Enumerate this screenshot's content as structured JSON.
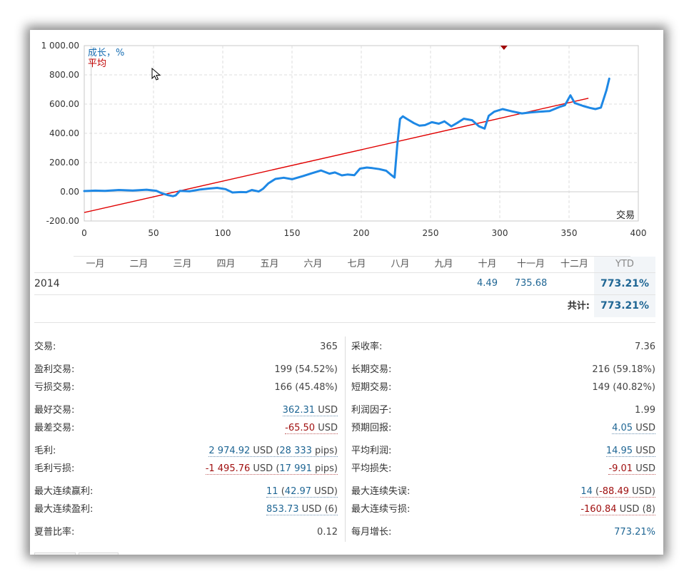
{
  "chart_data": {
    "type": "line",
    "xlabel": "交易",
    "ylabel": "",
    "xlim": [
      0,
      400
    ],
    "ylim": [
      -200,
      1000
    ],
    "x_ticks": [
      "0",
      "50",
      "100",
      "150",
      "200",
      "250",
      "300",
      "350",
      "400"
    ],
    "y_ticks": [
      "-200.00",
      "0.00",
      "200.00",
      "400.00",
      "600.00",
      "800.00",
      "1 000.00"
    ],
    "grid": true,
    "legend_position": "top-left",
    "series": [
      {
        "name": "成长，%",
        "color": "#1e88e5",
        "points": [
          [
            0,
            5
          ],
          [
            8,
            8
          ],
          [
            15,
            6
          ],
          [
            25,
            12
          ],
          [
            35,
            9
          ],
          [
            45,
            14
          ],
          [
            52,
            7
          ],
          [
            56,
            -10
          ],
          [
            60,
            -22
          ],
          [
            64,
            -30
          ],
          [
            66,
            -25
          ],
          [
            69,
            6
          ],
          [
            76,
            3
          ],
          [
            84,
            16
          ],
          [
            90,
            22
          ],
          [
            96,
            27
          ],
          [
            102,
            18
          ],
          [
            107,
            -5
          ],
          [
            113,
            -2
          ],
          [
            117,
            -3
          ],
          [
            121,
            12
          ],
          [
            126,
            2
          ],
          [
            129,
            20
          ],
          [
            133,
            58
          ],
          [
            138,
            88
          ],
          [
            144,
            96
          ],
          [
            150,
            86
          ],
          [
            158,
            108
          ],
          [
            164,
            126
          ],
          [
            171,
            146
          ],
          [
            177,
            124
          ],
          [
            181,
            132
          ],
          [
            186,
            112
          ],
          [
            190,
            118
          ],
          [
            195,
            113
          ],
          [
            199,
            158
          ],
          [
            204,
            166
          ],
          [
            208,
            162
          ],
          [
            213,
            155
          ],
          [
            218,
            144
          ],
          [
            221,
            120
          ],
          [
            224,
            97
          ],
          [
            226,
            318
          ],
          [
            228,
            498
          ],
          [
            230,
            516
          ],
          [
            233,
            498
          ],
          [
            238,
            470
          ],
          [
            242,
            452
          ],
          [
            246,
            456
          ],
          [
            251,
            476
          ],
          [
            256,
            466
          ],
          [
            260,
            482
          ],
          [
            265,
            448
          ],
          [
            269,
            470
          ],
          [
            274,
            500
          ],
          [
            280,
            490
          ],
          [
            285,
            448
          ],
          [
            289,
            432
          ],
          [
            292,
            520
          ],
          [
            296,
            548
          ],
          [
            302,
            566
          ],
          [
            309,
            550
          ],
          [
            316,
            536
          ],
          [
            322,
            543
          ],
          [
            328,
            548
          ],
          [
            336,
            552
          ],
          [
            343,
            580
          ],
          [
            347,
            592
          ],
          [
            351,
            660
          ],
          [
            354,
            608
          ],
          [
            360,
            588
          ],
          [
            365,
            574
          ],
          [
            369,
            566
          ],
          [
            373,
            576
          ],
          [
            377,
            695
          ],
          [
            379,
            774
          ]
        ]
      },
      {
        "name": "平均",
        "color": "#e00000",
        "points": [
          [
            0,
            -142
          ],
          [
            364,
            640
          ]
        ]
      }
    ],
    "annotations": [
      {
        "type": "marker",
        "x": 303,
        "color": "#a00000"
      }
    ]
  },
  "table": {
    "months": [
      "一月",
      "二月",
      "三月",
      "四月",
      "五月",
      "六月",
      "七月",
      "八月",
      "九月",
      "十月",
      "十一月",
      "十二月"
    ],
    "ytd_header": "YTD",
    "rows": [
      {
        "year": "2014",
        "values": [
          "",
          "",
          "",
          "",
          "",
          "",
          "",
          "",
          "",
          "4.49",
          "735.68",
          ""
        ],
        "ytd": "773.21%"
      }
    ],
    "total_label": "共计:",
    "total_value": "773.21%"
  },
  "stats_left": [
    {
      "label": "交易:",
      "value": "365"
    },
    {
      "label": "盈利交易:",
      "value": "199 (54.52%)"
    },
    {
      "label": "亏损交易:",
      "value": "166 (45.48%)"
    },
    {
      "label": "最好交易:",
      "value_num": "362.31",
      "value_unit": " USD"
    },
    {
      "label": "最差交易:",
      "value_num": "-65.50",
      "value_unit": " USD"
    },
    {
      "label": "毛利:",
      "v1": "2 974.92",
      "v2": " USD (",
      "v3": "28 333",
      "v4": " pips)"
    },
    {
      "label": "毛利亏损:",
      "v1": "-1 495.76",
      "v2": " USD (",
      "v3": "17 991",
      "v4": " pips)"
    },
    {
      "label": "最大连续赢利:",
      "v1": "11",
      "v2": " (",
      "v3": "42.97",
      "v4": " USD)"
    },
    {
      "label": "最大连续盈利:",
      "v1": "853.73",
      "v2": " USD (6)"
    },
    {
      "label": "夏普比率:",
      "value": "0.12"
    }
  ],
  "stats_right": [
    {
      "label": "采收率:",
      "value": "7.36"
    },
    {
      "label": "长期交易:",
      "value": "216 (59.18%)"
    },
    {
      "label": "短期交易:",
      "value": "149 (40.82%)"
    },
    {
      "label": "利润因子:",
      "value": "1.99"
    },
    {
      "label": "预期回报:",
      "value_num": "4.05",
      "value_unit": " USD"
    },
    {
      "label": "平均利润:",
      "value_num": "14.95",
      "value_unit": " USD"
    },
    {
      "label": "平均损失:",
      "value_num": "-9.01",
      "value_unit": " USD"
    },
    {
      "label": "最大连续失误:",
      "v1": "14",
      "v2": " (",
      "v3": "-88.49",
      "v4": " USD)"
    },
    {
      "label": "最大连续亏损:",
      "v1": "-160.84",
      "v2": " USD (8)"
    },
    {
      "label": "每月增长:",
      "value_num": "773.21%"
    }
  ],
  "colors": {
    "accent": "#1f6694",
    "negative": "#a01010",
    "growth_line": "#1e88e5",
    "average_line": "#e00000"
  }
}
